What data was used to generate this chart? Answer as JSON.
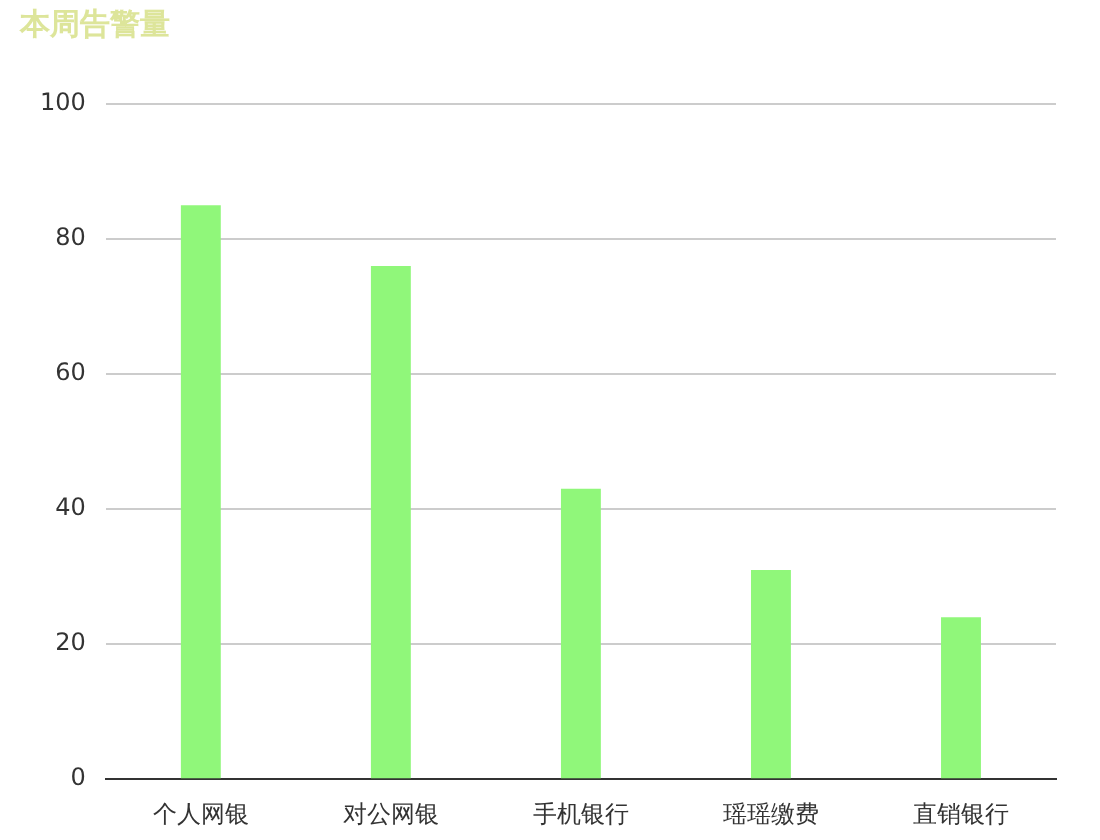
{
  "chart_data": {
    "type": "bar",
    "title": "本周告警量",
    "categories": [
      "个人网银",
      "对公网银",
      "手机银行",
      "瑶瑶缴费",
      "直销银行"
    ],
    "values": [
      85,
      76,
      43,
      31,
      24
    ],
    "color": "#90f77a",
    "ylim": [
      0,
      100
    ],
    "yticks": [
      0,
      20,
      40,
      60,
      80,
      100
    ],
    "grid": "y"
  }
}
